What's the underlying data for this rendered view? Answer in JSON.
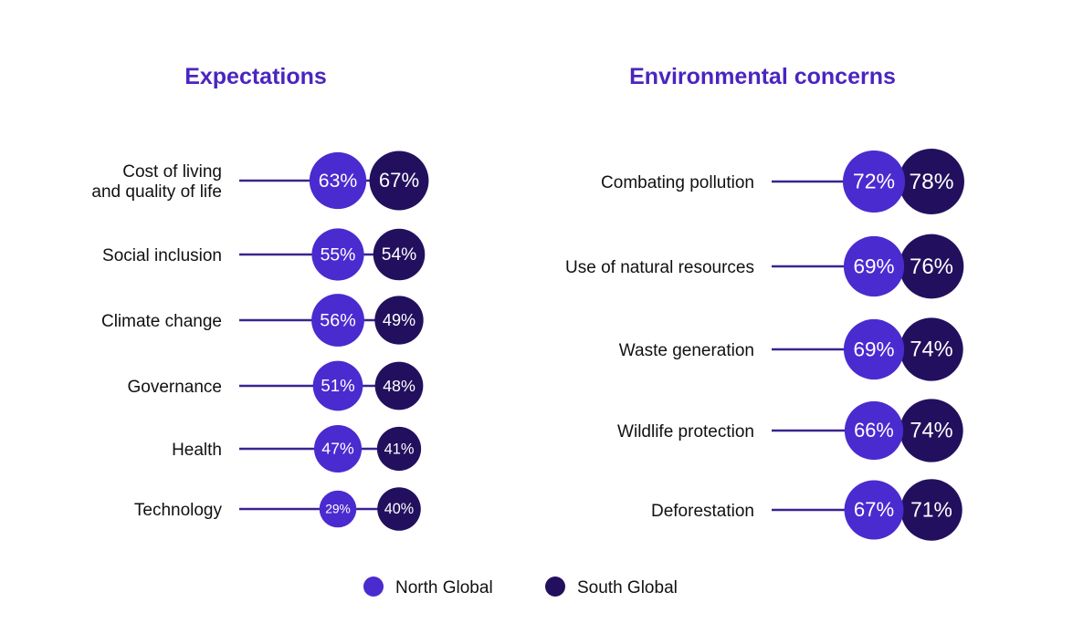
{
  "chart_data": [
    {
      "type": "bubble-dot",
      "title": "Expectations",
      "categories": [
        [
          "Cost of living",
          "and quality of life"
        ],
        [
          "Social inclusion"
        ],
        [
          "Climate change"
        ],
        [
          "Governance"
        ],
        [
          "Health"
        ],
        [
          "Technology"
        ]
      ],
      "series": [
        {
          "name": "North Global",
          "values": [
            63,
            55,
            56,
            51,
            47,
            29
          ]
        },
        {
          "name": "South Global",
          "values": [
            67,
            54,
            49,
            48,
            41,
            40
          ]
        }
      ]
    },
    {
      "type": "bubble-dot",
      "title": "Environmental concerns",
      "categories": [
        [
          "Combating pollution"
        ],
        [
          "Use of natural resources"
        ],
        [
          "Waste generation"
        ],
        [
          "Wildlife protection"
        ],
        [
          "Deforestation"
        ]
      ],
      "series": [
        {
          "name": "North Global",
          "values": [
            72,
            69,
            69,
            66,
            67
          ]
        },
        {
          "name": "South Global",
          "values": [
            78,
            76,
            74,
            74,
            71
          ]
        }
      ]
    }
  ],
  "legend": [
    {
      "name": "North Global",
      "color": "#4a2bd0"
    },
    {
      "name": "South Global",
      "color": "#22105e"
    }
  ],
  "colors": {
    "north": "#4a2bd0",
    "south": "#22105e",
    "title": "#4a25c0",
    "line": "#3a2390"
  }
}
